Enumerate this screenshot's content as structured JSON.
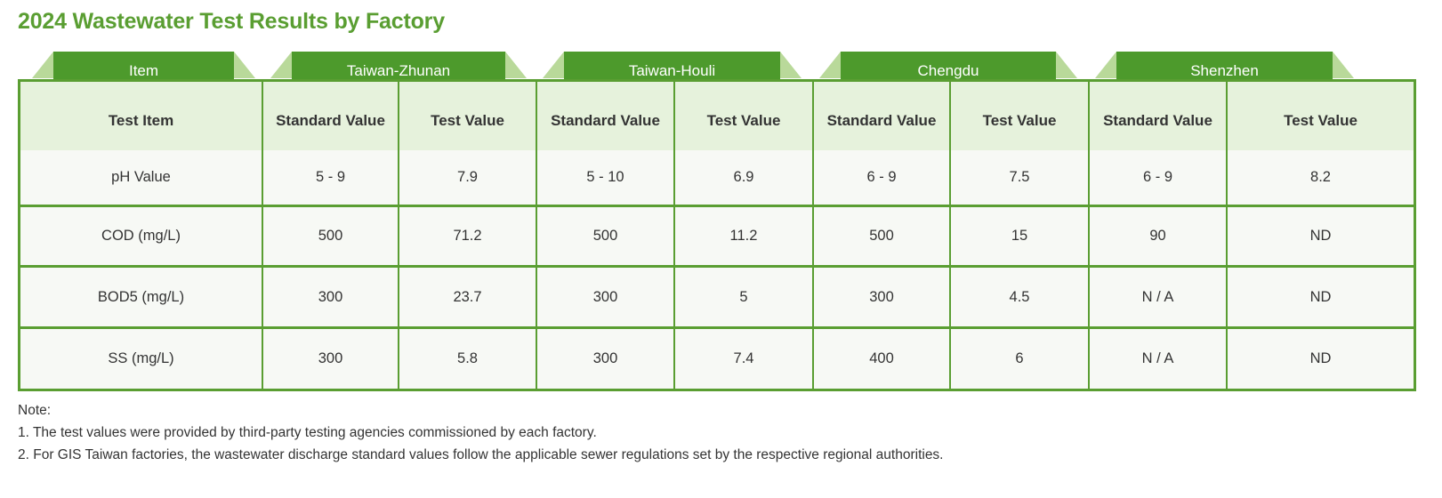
{
  "title": "2024 Wastewater Test Results by Factory",
  "groups": [
    "Item",
    "Taiwan-Zhunan",
    "Taiwan-Houli",
    "Chengdu",
    "Shenzhen"
  ],
  "columns": [
    "Test Item",
    "Standard Value",
    "Test Value",
    "Standard Value",
    "Test Value",
    "Standard Value",
    "Test Value",
    "Standard Value",
    "Test Value"
  ],
  "rows": [
    [
      "pH Value",
      "5 - 9",
      "7.9",
      "5 - 10",
      "6.9",
      "6 - 9",
      "7.5",
      "6 - 9",
      "8.2"
    ],
    [
      "COD (mg/L)",
      "500",
      "71.2",
      "500",
      "11.2",
      "500",
      "15",
      "90",
      "ND"
    ],
    [
      "BOD5 (mg/L)",
      "300",
      "23.7",
      "300",
      "5",
      "300",
      "4.5",
      "N / A",
      "ND"
    ],
    [
      "SS (mg/L)",
      "300",
      "5.8",
      "300",
      "7.4",
      "400",
      "6",
      "N / A",
      "ND"
    ]
  ],
  "notes": {
    "heading": "Note:",
    "items": [
      "1.  The test values were provided by third-party testing agencies commissioned by each factory.",
      "2.  For GIS Taiwan factories, the wastewater discharge standard values follow the applicable sewer regulations set by the respective regional authorities."
    ]
  },
  "colors": {
    "accent": "#5a9e32",
    "tab": "#4d9a2c",
    "header_bg": "#e6f2dc",
    "body_bg": "#f7f9f5"
  }
}
